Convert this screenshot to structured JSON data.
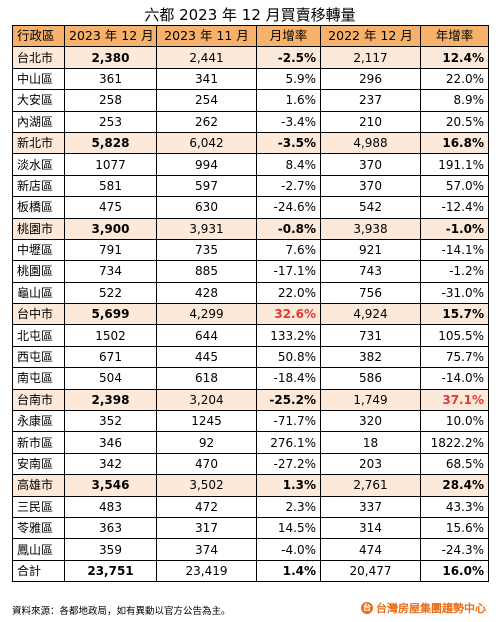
{
  "title": "六都 2023 年 12 月買賣移轉量",
  "headers": [
    "行政區",
    "2023 年 12 月",
    "2023 年 11 月",
    "月增率",
    "2022 年 12 月",
    "年增率"
  ],
  "rows": [
    {
      "type": "city",
      "name": "台北市",
      "dec2023": "2,380",
      "nov2023": "2,441",
      "mom": "-2.5%",
      "dec2022": "2,117",
      "yoy": "12.4%"
    },
    {
      "type": "dist",
      "name": "中山區",
      "dec2023": "361",
      "nov2023": "341",
      "mom": "5.9%",
      "dec2022": "296",
      "yoy": "22.0%"
    },
    {
      "type": "dist",
      "name": "大安區",
      "dec2023": "258",
      "nov2023": "254",
      "mom": "1.6%",
      "dec2022": "237",
      "yoy": "8.9%"
    },
    {
      "type": "dist",
      "name": "內湖區",
      "dec2023": "253",
      "nov2023": "262",
      "mom": "-3.4%",
      "dec2022": "210",
      "yoy": "20.5%"
    },
    {
      "type": "city",
      "name": "新北市",
      "dec2023": "5,828",
      "nov2023": "6,042",
      "mom": "-3.5%",
      "dec2022": "4,988",
      "yoy": "16.8%"
    },
    {
      "type": "dist",
      "name": "淡水區",
      "dec2023": "1077",
      "nov2023": "994",
      "mom": "8.4%",
      "dec2022": "370",
      "yoy": "191.1%"
    },
    {
      "type": "dist",
      "name": "新店區",
      "dec2023": "581",
      "nov2023": "597",
      "mom": "-2.7%",
      "dec2022": "370",
      "yoy": "57.0%"
    },
    {
      "type": "dist",
      "name": "板橋區",
      "dec2023": "475",
      "nov2023": "630",
      "mom": "-24.6%",
      "dec2022": "542",
      "yoy": "-12.4%"
    },
    {
      "type": "city",
      "name": "桃園市",
      "dec2023": "3,900",
      "nov2023": "3,931",
      "mom": "-0.8%",
      "dec2022": "3,938",
      "yoy": "-1.0%"
    },
    {
      "type": "dist",
      "name": "中壢區",
      "dec2023": "791",
      "nov2023": "735",
      "mom": "7.6%",
      "dec2022": "921",
      "yoy": "-14.1%"
    },
    {
      "type": "dist",
      "name": "桃園區",
      "dec2023": "734",
      "nov2023": "885",
      "mom": "-17.1%",
      "dec2022": "743",
      "yoy": "-1.2%"
    },
    {
      "type": "dist",
      "name": "龜山區",
      "dec2023": "522",
      "nov2023": "428",
      "mom": "22.0%",
      "dec2022": "756",
      "yoy": "-31.0%"
    },
    {
      "type": "city",
      "name": "台中市",
      "dec2023": "5,699",
      "nov2023": "4,299",
      "mom": "32.6%",
      "dec2022": "4,924",
      "yoy": "15.7%",
      "mom_red": true
    },
    {
      "type": "dist",
      "name": "北屯區",
      "dec2023": "1502",
      "nov2023": "644",
      "mom": "133.2%",
      "dec2022": "731",
      "yoy": "105.5%"
    },
    {
      "type": "dist",
      "name": "西屯區",
      "dec2023": "671",
      "nov2023": "445",
      "mom": "50.8%",
      "dec2022": "382",
      "yoy": "75.7%"
    },
    {
      "type": "dist",
      "name": "南屯區",
      "dec2023": "504",
      "nov2023": "618",
      "mom": "-18.4%",
      "dec2022": "586",
      "yoy": "-14.0%"
    },
    {
      "type": "city",
      "name": "台南市",
      "dec2023": "2,398",
      "nov2023": "3,204",
      "mom": "-25.2%",
      "dec2022": "1,749",
      "yoy": "37.1%",
      "yoy_red": true
    },
    {
      "type": "dist",
      "name": "永康區",
      "dec2023": "352",
      "nov2023": "1245",
      "mom": "-71.7%",
      "dec2022": "320",
      "yoy": "10.0%"
    },
    {
      "type": "dist",
      "name": "新市區",
      "dec2023": "346",
      "nov2023": "92",
      "mom": "276.1%",
      "dec2022": "18",
      "yoy": "1822.2%"
    },
    {
      "type": "dist",
      "name": "安南區",
      "dec2023": "342",
      "nov2023": "470",
      "mom": "-27.2%",
      "dec2022": "203",
      "yoy": "68.5%"
    },
    {
      "type": "city",
      "name": "高雄市",
      "dec2023": "3,546",
      "nov2023": "3,502",
      "mom": "1.3%",
      "dec2022": "2,761",
      "yoy": "28.4%"
    },
    {
      "type": "dist",
      "name": "三民區",
      "dec2023": "483",
      "nov2023": "472",
      "mom": "2.3%",
      "dec2022": "337",
      "yoy": "43.3%"
    },
    {
      "type": "dist",
      "name": "苓雅區",
      "dec2023": "363",
      "nov2023": "317",
      "mom": "14.5%",
      "dec2022": "314",
      "yoy": "15.6%"
    },
    {
      "type": "dist",
      "name": "鳳山區",
      "dec2023": "359",
      "nov2023": "374",
      "mom": "-4.0%",
      "dec2022": "474",
      "yoy": "-24.3%"
    },
    {
      "type": "total",
      "name": "合計",
      "dec2023": "23,751",
      "nov2023": "23,419",
      "mom": "1.4%",
      "dec2022": "20,477",
      "yoy": "16.0%"
    }
  ],
  "footer": "資料來源：各都地政局，如有異動以官方公告為主。",
  "logo": {
    "text": "台灣房屋集團趨勢中心",
    "icon": "logo-icon"
  },
  "colors": {
    "header": "#f6b26b",
    "city_row": "#fde9d9",
    "highlight_red": "#e53935",
    "logo": "#e8701a"
  }
}
